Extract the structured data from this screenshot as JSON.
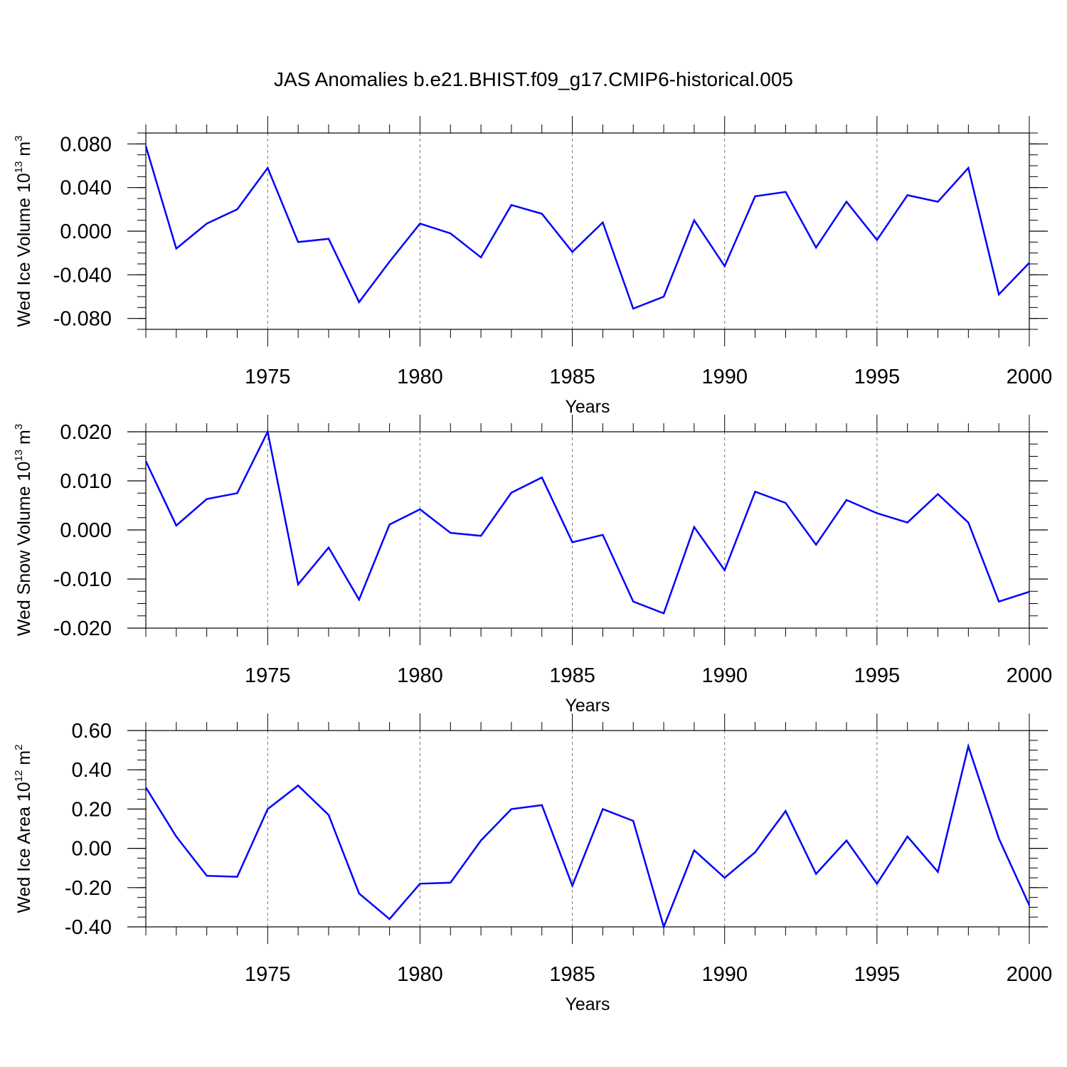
{
  "title": "JAS Anomalies b.e21.BHIST.f09_g17.CMIP6-historical.005",
  "line_color": "#0000ff",
  "chart_data": [
    {
      "type": "line",
      "ylabel": "Wed Ice Volume 10",
      "ylabel_exp": "13",
      "ylabel_unit": "m",
      "ylabel_unit_exp": "3",
      "xlabel": "Years",
      "xlim": [
        1971,
        2000
      ],
      "ylim": [
        -0.09,
        0.09
      ],
      "yticks": [
        0.08,
        0.04,
        0.0,
        -0.04,
        -0.08
      ],
      "ytick_labels": [
        "0.080",
        "0.040",
        "0.000",
        "-0.040",
        "-0.080"
      ],
      "xticks": [
        1975,
        1980,
        1985,
        1990,
        1995,
        2000
      ],
      "xtick_labels": [
        "1975",
        "1980",
        "1985",
        "1990",
        "1995",
        "2000"
      ],
      "x": [
        1971,
        1972,
        1973,
        1974,
        1975,
        1976,
        1977,
        1978,
        1979,
        1980,
        1981,
        1982,
        1983,
        1984,
        1985,
        1986,
        1987,
        1988,
        1989,
        1990,
        1991,
        1992,
        1993,
        1994,
        1995,
        1996,
        1997,
        1998,
        1999,
        2000
      ],
      "y": [
        0.078,
        -0.016,
        0.007,
        0.02,
        0.058,
        -0.01,
        -0.007,
        -0.065,
        -0.028,
        0.007,
        -0.002,
        -0.024,
        0.024,
        0.016,
        -0.019,
        0.008,
        -0.071,
        -0.06,
        0.01,
        -0.032,
        0.032,
        0.036,
        -0.015,
        0.027,
        -0.008,
        0.033,
        0.027,
        0.058,
        -0.058,
        -0.029
      ]
    },
    {
      "type": "line",
      "ylabel": "Wed Snow Volume 10",
      "ylabel_exp": "13",
      "ylabel_unit": "m",
      "ylabel_unit_exp": "3",
      "xlabel": "Years",
      "xlim": [
        1971,
        2000
      ],
      "ylim": [
        -0.02,
        0.02
      ],
      "yticks": [
        0.02,
        0.01,
        0.0,
        -0.01,
        -0.02
      ],
      "ytick_labels": [
        "0.020",
        "0.010",
        "0.000",
        "-0.010",
        "-0.020"
      ],
      "xticks": [
        1975,
        1980,
        1985,
        1990,
        1995,
        2000
      ],
      "xtick_labels": [
        "1975",
        "1980",
        "1985",
        "1990",
        "1995",
        "2000"
      ],
      "x": [
        1971,
        1972,
        1973,
        1974,
        1975,
        1976,
        1977,
        1978,
        1979,
        1980,
        1981,
        1982,
        1983,
        1984,
        1985,
        1986,
        1987,
        1988,
        1989,
        1990,
        1991,
        1992,
        1993,
        1994,
        1995,
        1996,
        1997,
        1998,
        1999,
        2000
      ],
      "y": [
        0.014,
        0.0009,
        0.0063,
        0.0075,
        0.02,
        -0.0111,
        -0.0036,
        -0.0142,
        0.0011,
        0.0042,
        -0.0006,
        -0.0012,
        0.0076,
        0.0107,
        -0.0025,
        -0.001,
        -0.0146,
        -0.017,
        0.0006,
        -0.0082,
        0.0078,
        0.0055,
        -0.003,
        0.0061,
        0.0034,
        0.0015,
        0.0073,
        0.0015,
        -0.0146,
        -0.0126
      ]
    },
    {
      "type": "line",
      "ylabel": "Wed Ice Area 10",
      "ylabel_exp": "12",
      "ylabel_unit": "m",
      "ylabel_unit_exp": "2",
      "xlabel": "Years",
      "xlim": [
        1971,
        2000
      ],
      "ylim": [
        -0.4,
        0.6
      ],
      "yticks": [
        0.6,
        0.4,
        0.2,
        0.0,
        -0.2,
        -0.4
      ],
      "ytick_labels": [
        "0.60",
        "0.40",
        "0.20",
        "0.00",
        "-0.20",
        "-0.40"
      ],
      "xticks": [
        1975,
        1980,
        1985,
        1990,
        1995,
        2000
      ],
      "xtick_labels": [
        "1975",
        "1980",
        "1985",
        "1990",
        "1995",
        "2000"
      ],
      "x": [
        1971,
        1972,
        1973,
        1974,
        1975,
        1976,
        1977,
        1978,
        1979,
        1980,
        1981,
        1982,
        1983,
        1984,
        1985,
        1986,
        1987,
        1988,
        1989,
        1990,
        1991,
        1992,
        1993,
        1994,
        1995,
        1996,
        1997,
        1998,
        1999,
        2000
      ],
      "y": [
        0.31,
        0.06,
        -0.14,
        -0.145,
        0.2,
        0.32,
        0.17,
        -0.23,
        -0.36,
        -0.18,
        -0.175,
        0.04,
        0.2,
        0.22,
        -0.19,
        0.2,
        0.14,
        -0.4,
        -0.01,
        -0.15,
        -0.02,
        0.19,
        -0.13,
        0.04,
        -0.18,
        0.06,
        -0.12,
        0.52,
        0.05,
        -0.29
      ]
    }
  ]
}
